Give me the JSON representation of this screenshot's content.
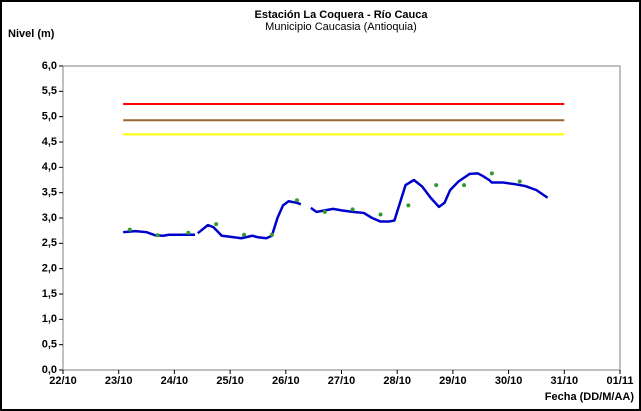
{
  "chart_data": {
    "type": "line",
    "title": "Estación La Coquera - Río Cauca",
    "subtitle": "Municipio Caucasia (Antioquia)",
    "ylabel": "Nivel (m)",
    "xlabel": "Fecha (DD/M/AA)",
    "xlim": [
      0,
      10
    ],
    "xticks": [
      {
        "value": 0,
        "label": "22/10"
      },
      {
        "value": 1,
        "label": "23/10"
      },
      {
        "value": 2,
        "label": "24/10"
      },
      {
        "value": 3,
        "label": "25/10"
      },
      {
        "value": 4,
        "label": "26/10"
      },
      {
        "value": 5,
        "label": "27/10"
      },
      {
        "value": 6,
        "label": "28/10"
      },
      {
        "value": 7,
        "label": "29/10"
      },
      {
        "value": 8,
        "label": "30/10"
      },
      {
        "value": 9,
        "label": "31/10"
      },
      {
        "value": 10,
        "label": "01/11"
      }
    ],
    "ylim": [
      0,
      6
    ],
    "yticks": [
      {
        "value": 0,
        "label": "0,0"
      },
      {
        "value": 0.5,
        "label": "0,5"
      },
      {
        "value": 1,
        "label": "1,0"
      },
      {
        "value": 1.5,
        "label": "1,5"
      },
      {
        "value": 2,
        "label": "2,0"
      },
      {
        "value": 2.5,
        "label": "2,5"
      },
      {
        "value": 3,
        "label": "3,0"
      },
      {
        "value": 3.5,
        "label": "3,5"
      },
      {
        "value": 4,
        "label": "4,0"
      },
      {
        "value": 4.5,
        "label": "4,5"
      },
      {
        "value": 5,
        "label": "5,0"
      },
      {
        "value": 5.5,
        "label": "5,5"
      },
      {
        "value": 6,
        "label": "6,0"
      }
    ],
    "grid": false,
    "hlines": [
      {
        "value": 5.25,
        "color": "#ff0000",
        "x": [
          1.08,
          9.0
        ]
      },
      {
        "value": 4.93,
        "color": "#996633",
        "x": [
          1.08,
          9.0
        ]
      },
      {
        "value": 4.65,
        "color": "#ffff00",
        "x": [
          1.08,
          9.0
        ]
      }
    ],
    "series": [
      {
        "type": "line",
        "color": "#0000cc",
        "x": [
          1.08,
          1.3,
          1.5,
          1.65,
          1.8,
          1.9,
          2.0,
          2.37,
          2.4,
          2.42,
          2.6,
          2.7,
          2.85,
          3.0,
          3.2,
          3.4,
          3.5,
          3.65,
          3.75,
          3.85,
          3.95,
          4.05,
          4.2,
          4.27,
          4.35,
          4.45,
          4.55,
          4.7,
          4.85,
          5.0,
          5.2,
          5.4,
          5.55,
          5.7,
          5.85,
          5.95,
          6.05,
          6.15,
          6.3,
          6.45,
          6.6,
          6.75,
          6.85,
          6.95,
          7.1,
          7.3,
          7.45,
          7.55,
          7.65,
          7.7,
          7.9,
          8.1,
          8.3,
          8.5,
          8.7
        ],
        "values": [
          2.72,
          2.74,
          2.72,
          2.66,
          2.65,
          2.67,
          2.67,
          2.67,
          null,
          2.7,
          2.86,
          2.82,
          2.65,
          2.63,
          2.6,
          2.65,
          2.62,
          2.6,
          2.65,
          3.0,
          3.25,
          3.33,
          3.3,
          3.27,
          null,
          3.2,
          3.12,
          3.15,
          3.18,
          3.15,
          3.12,
          3.1,
          3.0,
          2.93,
          2.93,
          2.95,
          3.3,
          3.65,
          3.75,
          3.62,
          3.4,
          3.22,
          3.3,
          3.55,
          3.72,
          3.87,
          3.88,
          3.82,
          3.75,
          3.7,
          3.7,
          3.67,
          3.63,
          3.55,
          3.4
        ]
      },
      {
        "type": "scatter",
        "color": "#339933",
        "x": [
          1.2,
          1.7,
          2.25,
          2.75,
          3.25,
          3.75,
          4.2,
          4.7,
          5.2,
          5.7,
          6.2,
          6.7,
          7.2,
          7.7,
          8.2
        ],
        "values": [
          2.77,
          2.66,
          2.71,
          2.88,
          2.67,
          2.67,
          3.35,
          3.12,
          3.17,
          3.07,
          3.25,
          3.65,
          3.65,
          3.88,
          3.72
        ]
      }
    ]
  }
}
